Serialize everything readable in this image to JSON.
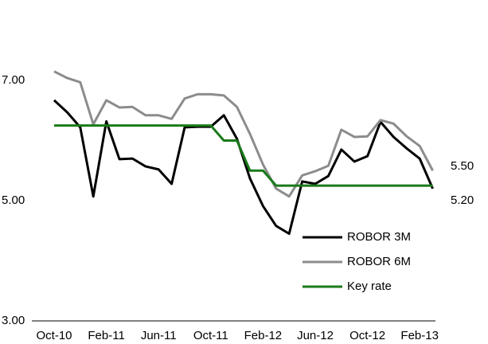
{
  "chart_data": {
    "type": "line",
    "categories": [
      "Oct-10",
      null,
      null,
      null,
      "Feb-11",
      null,
      null,
      null,
      "Jun-11",
      null,
      null,
      null,
      "Oct-11",
      null,
      null,
      null,
      "Feb-12",
      null,
      null,
      null,
      "Jun-12",
      null,
      null,
      null,
      "Oct-12",
      null,
      null,
      null,
      "Feb-13",
      null
    ],
    "series": [
      {
        "name": "ROBOR 3M",
        "color": "#000000",
        "values": [
          6.67,
          6.47,
          6.22,
          5.07,
          6.32,
          5.69,
          5.7,
          5.57,
          5.52,
          5.28,
          6.22,
          6.23,
          6.23,
          6.42,
          6.03,
          5.37,
          4.91,
          4.58,
          4.45,
          5.32,
          5.28,
          5.41,
          5.85,
          5.65,
          5.74,
          6.31,
          6.06,
          5.87,
          5.7,
          5.2
        ],
        "value_labels": [
          null,
          null,
          null,
          null,
          null,
          null,
          null,
          null,
          null,
          null,
          null,
          null,
          null,
          null,
          null,
          null,
          null,
          null,
          null,
          null,
          null,
          null,
          null,
          null,
          null,
          null,
          null,
          null,
          null,
          "5.20"
        ]
      },
      {
        "name": "ROBOR 6M",
        "color": "#8c8c8c",
        "values": [
          7.15,
          7.04,
          6.97,
          6.27,
          6.67,
          6.55,
          6.56,
          6.42,
          6.42,
          6.36,
          6.7,
          6.77,
          6.77,
          6.75,
          6.56,
          6.11,
          5.6,
          5.2,
          5.07,
          5.42,
          5.49,
          5.58,
          6.18,
          6.06,
          6.07,
          6.34,
          6.28,
          6.07,
          5.91,
          5.5
        ],
        "value_labels": [
          null,
          null,
          null,
          null,
          null,
          null,
          null,
          null,
          null,
          null,
          null,
          null,
          null,
          null,
          null,
          null,
          null,
          null,
          null,
          null,
          null,
          null,
          null,
          null,
          null,
          null,
          null,
          null,
          null,
          "5.50"
        ]
      },
      {
        "name": "Key rate",
        "color": "#1a7a1a",
        "values": [
          6.25,
          6.25,
          6.25,
          6.25,
          6.25,
          6.25,
          6.25,
          6.25,
          6.25,
          6.25,
          6.25,
          6.25,
          6.25,
          6.0,
          6.0,
          5.5,
          5.5,
          5.25,
          5.25,
          5.25,
          5.25,
          5.25,
          5.25,
          5.25,
          5.25,
          5.25,
          5.25,
          5.25,
          5.25,
          5.25
        ]
      }
    ],
    "ylim": [
      3,
      7.5
    ],
    "yticks": [
      {
        "value": 3,
        "label": "3.00"
      },
      {
        "value": 5,
        "label": "5.00"
      },
      {
        "value": 7,
        "label": "7.00"
      }
    ],
    "grid": false,
    "legend": "lower right"
  }
}
